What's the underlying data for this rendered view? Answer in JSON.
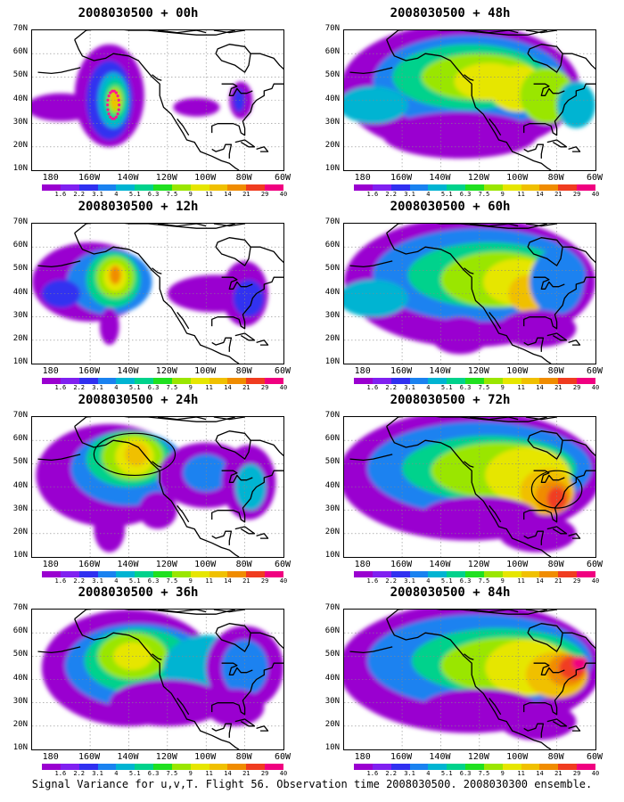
{
  "panels": [
    {
      "id": "p00",
      "title": "2008030500 + 00h",
      "variant": 0
    },
    {
      "id": "p12",
      "title": "2008030500 + 12h",
      "variant": 1
    },
    {
      "id": "p24",
      "title": "2008030500 + 24h",
      "variant": 2
    },
    {
      "id": "p36",
      "title": "2008030500 + 36h",
      "variant": 3
    },
    {
      "id": "p48",
      "title": "2008030500 + 48h",
      "variant": 4
    },
    {
      "id": "p60",
      "title": "2008030500 + 60h",
      "variant": 5
    },
    {
      "id": "p72",
      "title": "2008030500 + 72h",
      "variant": 6
    },
    {
      "id": "p84",
      "title": "2008030500 + 84h",
      "variant": 7
    }
  ],
  "lat_labels": [
    "70N",
    "60N",
    "50N",
    "40N",
    "30N",
    "20N",
    "10N"
  ],
  "lon_labels": [
    "180",
    "160W",
    "140W",
    "120W",
    "100W",
    "80W",
    "60W"
  ],
  "colorbar": {
    "labels": [
      "1.6",
      "2.2",
      "3.1",
      "4",
      "5.1",
      "6.3",
      "7.5",
      "9",
      "11",
      "14",
      "21",
      "29",
      "40"
    ],
    "colors": [
      "#9a00d0",
      "#8020f0",
      "#3030f0",
      "#1a82f0",
      "#00b4d2",
      "#00d28c",
      "#20e020",
      "#9ae600",
      "#e6e600",
      "#f0c000",
      "#f08c00",
      "#f03c20",
      "#f00080"
    ]
  },
  "caption": "Signal Variance for u,v,T. Flight 56. Observation time 2008030500. 2008030300 ensemble."
}
